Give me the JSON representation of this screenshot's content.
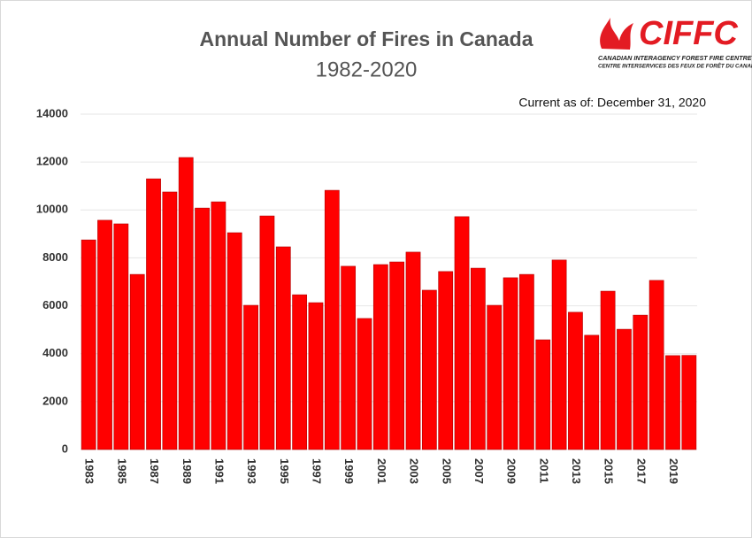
{
  "chart_data": {
    "type": "bar",
    "title": "Annual Number of Fires in Canada",
    "subtitle": "1982-2020",
    "annotation": "Current as of:  December 31, 2020",
    "categories": [
      "1983",
      null,
      "1985",
      null,
      "1987",
      null,
      "1989",
      null,
      "1991",
      null,
      "1993",
      null,
      "1995",
      null,
      "1997",
      null,
      "1999",
      null,
      "2001",
      null,
      "2003",
      null,
      "2005",
      null,
      "2007",
      null,
      "2009",
      null,
      "2011",
      null,
      "2013",
      null,
      "2015",
      null,
      "2017",
      null,
      "2019",
      null
    ],
    "values": [
      8750,
      9570,
      9420,
      7310,
      11300,
      10750,
      12190,
      10080,
      10340,
      9050,
      6020,
      9750,
      8460,
      6460,
      6130,
      10820,
      7650,
      5470,
      7720,
      7830,
      8240,
      6650,
      7430,
      9720,
      7570,
      6020,
      7170,
      7310,
      4580,
      7910,
      5730,
      4770,
      6610,
      5020,
      5610,
      7060,
      3920,
      3930
    ],
    "color": "#ff0000",
    "ylim": [
      0,
      14000
    ],
    "yticks": [
      0,
      2000,
      4000,
      6000,
      8000,
      10000,
      12000,
      14000
    ],
    "grid": true
  },
  "logo": {
    "name": "CIFFC",
    "line1": "CANADIAN INTERAGENCY FOREST FIRE CENTRE INC.",
    "line2": "CENTRE INTERSERVICES DES FEUX DE FORÊT DU CANADA INC."
  }
}
